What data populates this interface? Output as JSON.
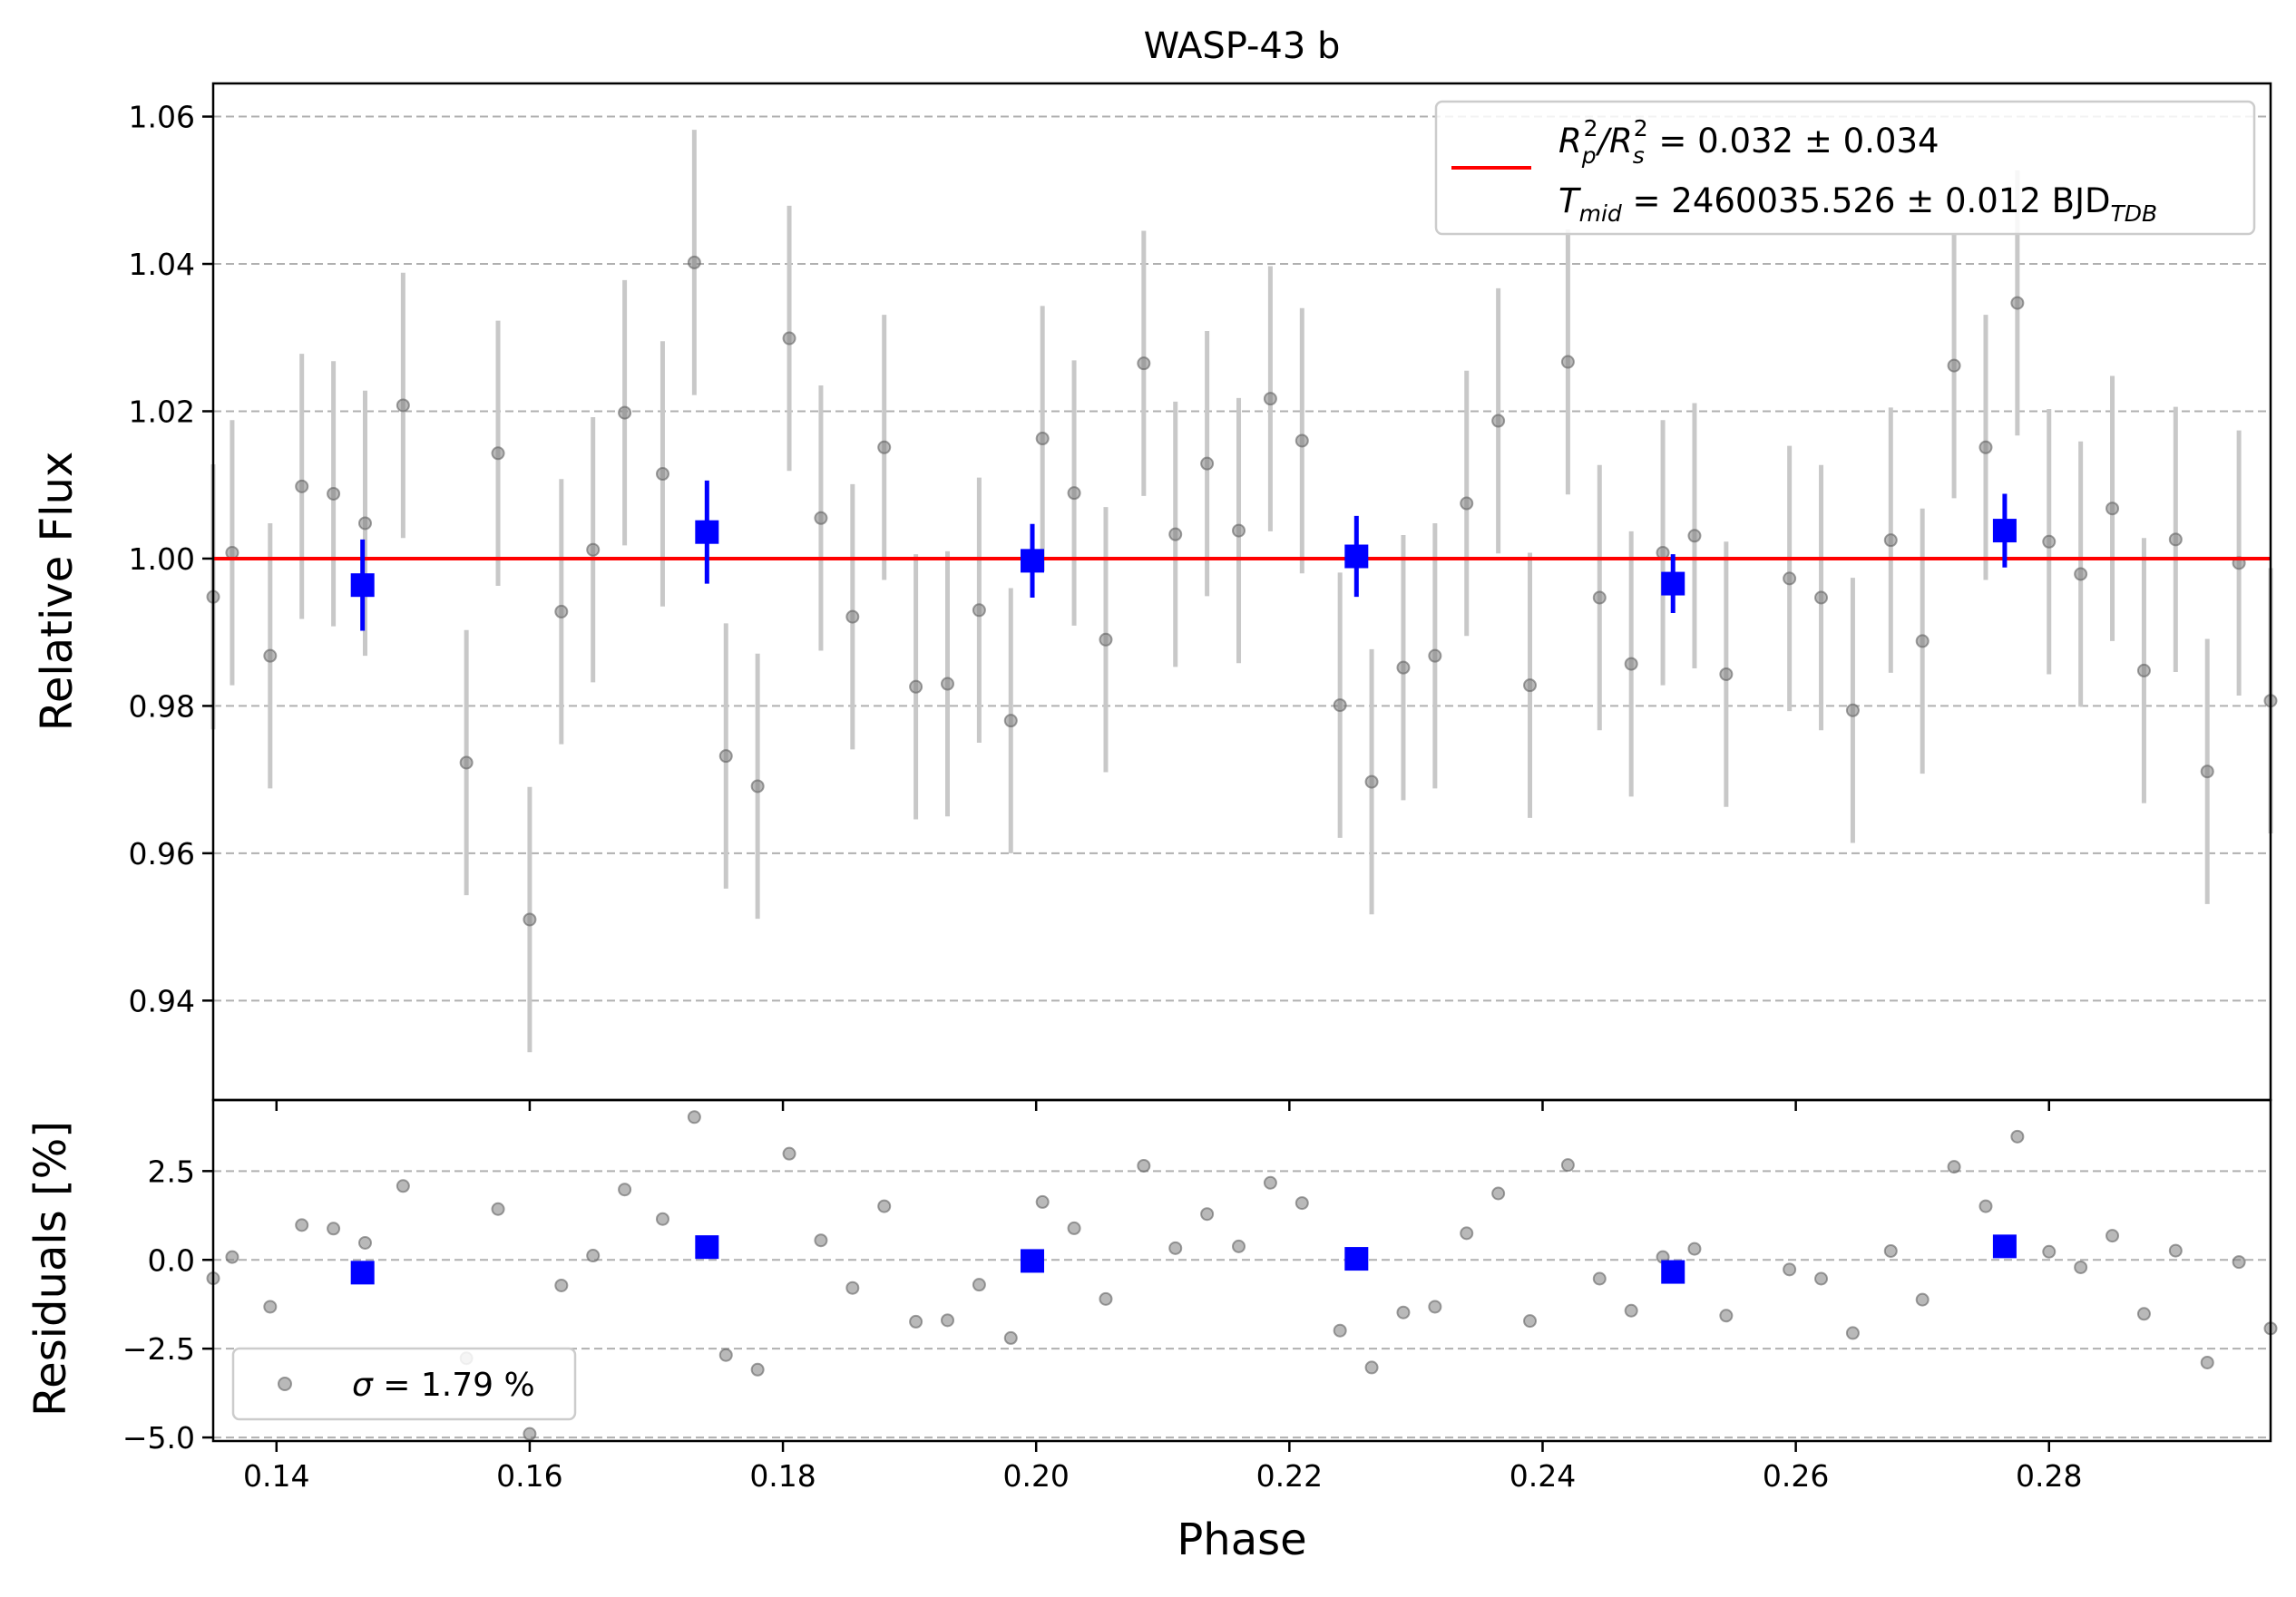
{
  "chart_data": [
    {
      "type": "scatter",
      "title": "WASP-43 b",
      "xlabel": "Phase",
      "ylabel": "Relative Flux",
      "xlim": [
        0.135,
        0.2975
      ],
      "ylim": [
        0.9265,
        1.0645
      ],
      "xticks": [
        "0.14",
        "0.16",
        "0.18",
        "0.20",
        "0.22",
        "0.24",
        "0.26",
        "0.28"
      ],
      "xtick_values": [
        0.14,
        0.16,
        0.18,
        0.2,
        0.22,
        0.24,
        0.26,
        0.28
      ],
      "yticks": [
        "0.94",
        "0.96",
        "0.98",
        "1.00",
        "1.02",
        "1.04",
        "1.06"
      ],
      "ytick_values": [
        0.94,
        0.96,
        0.98,
        1.0,
        1.02,
        1.04,
        1.06
      ],
      "grid": "horizontal dashed",
      "legend": {
        "placement": "top-right",
        "label_line1": "R_p²/R_s² = 0.032 ± 0.034",
        "label_line2": "T_mid = 2460035.526 ± 0.012 BJD_TDB",
        "line1_parts": [
          "R",
          "p",
          "2",
          "/R",
          "s",
          "2",
          " = 0.032 ± 0.034"
        ],
        "line2_parts": [
          "T",
          "mid",
          " = 2460035.526 ± 0.012 BJD",
          "TDB"
        ]
      },
      "model": {
        "name": "model",
        "value": 1.0,
        "color": "#ff0000"
      },
      "series": [
        {
          "name": "data",
          "color": "#808080",
          "error": 0.018,
          "x": [
            0.135,
            0.1365,
            0.1395,
            0.142,
            0.1445,
            0.147,
            0.15,
            0.155,
            0.1575,
            0.16,
            0.1625,
            0.165,
            0.1675,
            0.1705,
            0.173,
            0.1755,
            0.178,
            0.1805,
            0.183,
            0.1855,
            0.188,
            0.1905,
            0.193,
            0.1955,
            0.198,
            0.2005,
            0.203,
            0.2055,
            0.2085,
            0.211,
            0.2135,
            0.216,
            0.2185,
            0.221,
            0.224,
            0.2265,
            0.229,
            0.2315,
            0.234,
            0.2365,
            0.239,
            0.242,
            0.2445,
            0.247,
            0.2495,
            0.252,
            0.2545,
            0.2595,
            0.262,
            0.2645,
            0.2675,
            0.27,
            0.2725,
            0.275,
            0.2775,
            0.28,
            0.2825,
            0.285,
            0.2875,
            0.29,
            0.2925,
            0.295,
            0.2975
          ],
          "y": [
            0.9948,
            1.0008,
            0.9868,
            1.0098,
            1.0088,
            1.0048,
            1.0208,
            0.9723,
            1.0143,
            0.951,
            0.9928,
            1.0012,
            1.0198,
            1.0115,
            1.0402,
            0.9732,
            0.9691,
            1.0299,
            1.0055,
            0.9921,
            1.0151,
            0.9826,
            0.983,
            0.993,
            0.978,
            1.0163,
            1.0089,
            0.989,
            1.0265,
            1.0033,
            1.0129,
            1.0038,
            1.0217,
            1.016,
            0.9801,
            0.9697,
            0.9852,
            0.9868,
            1.0075,
            1.0187,
            0.9828,
            1.0267,
            0.9947,
            0.9857,
            1.0008,
            1.0031,
            0.9843,
            0.9973,
            0.9947,
            0.9794,
            1.0025,
            0.9888,
            1.0262,
            1.0151,
            1.0347,
            1.0023,
            0.9979,
            1.0068,
            0.9848,
            1.0026,
            0.9711,
            0.9994,
            0.9807
          ],
          "residuals": [
            -0.52,
            0.08,
            -1.32,
            0.98,
            0.88,
            0.48,
            2.08,
            -2.77,
            1.43,
            -4.9,
            -0.72,
            0.12,
            1.98,
            1.15,
            4.02,
            -2.68,
            -3.09,
            2.99,
            0.55,
            -0.79,
            1.51,
            -1.74,
            -1.7,
            -0.7,
            -2.2,
            1.63,
            0.89,
            -1.1,
            2.65,
            0.33,
            1.29,
            0.38,
            2.17,
            1.6,
            -1.99,
            -3.03,
            -1.48,
            -1.32,
            0.75,
            1.87,
            -1.72,
            2.67,
            -0.53,
            -1.43,
            0.08,
            0.31,
            -1.57,
            -0.27,
            -0.53,
            -2.06,
            0.25,
            -1.12,
            2.62,
            1.51,
            3.47,
            0.23,
            -0.21,
            0.68,
            -1.52,
            0.26,
            -2.89,
            -0.06,
            -1.93
          ]
        },
        {
          "name": "binned",
          "color": "#0000ff",
          "x": [
            0.1468,
            0.174,
            0.1997,
            0.2253,
            0.2503,
            0.2765
          ],
          "y": [
            0.9964,
            1.0036,
            0.9997,
            1.0003,
            0.9966,
            1.0038
          ],
          "error": [
            0.0062,
            0.007,
            0.005,
            0.0055,
            0.004,
            0.005
          ],
          "residuals": [
            -0.36,
            0.36,
            -0.03,
            0.03,
            -0.34,
            0.38
          ]
        }
      ]
    },
    {
      "type": "scatter",
      "xlabel": "Phase",
      "ylabel": "Residuals [%]",
      "xlim": [
        0.135,
        0.2975
      ],
      "ylim": [
        -5.1,
        4.5
      ],
      "yticks": [
        "−5.0",
        "−2.5",
        "0.0",
        "2.5"
      ],
      "ytick_values": [
        -5.0,
        -2.5,
        0.0,
        2.5
      ],
      "grid": "horizontal dashed",
      "legend": {
        "placement": "bottom-left",
        "label": "σ = 1.79 %",
        "label_parts": [
          "σ",
          " = 1.79 %"
        ]
      }
    }
  ]
}
